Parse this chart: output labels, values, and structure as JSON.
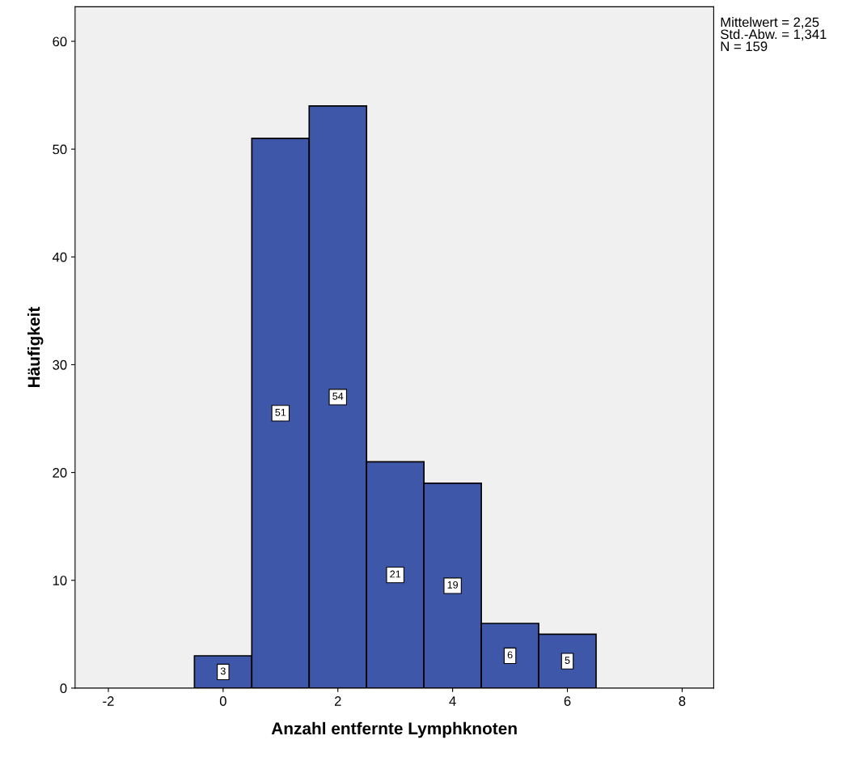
{
  "chart_data": {
    "type": "histogram",
    "xlabel": "Anzahl entfernte Lymphknoten",
    "ylabel": "Häufigkeit",
    "bins": [
      -0.5,
      0.5,
      1.5,
      2.5,
      3.5,
      4.5,
      5.5,
      6.5
    ],
    "values": [
      3,
      51,
      54,
      21,
      19,
      6,
      5
    ],
    "color": "#3f57a8",
    "data_labels": true,
    "xlim": [
      -2.58,
      8.55
    ],
    "xticks": [
      {
        "value": -2,
        "label": "-2"
      },
      0,
      2,
      4,
      6,
      8
    ],
    "ylim": [
      0,
      63.2
    ],
    "yticks": [
      0,
      10,
      20,
      30,
      40,
      50,
      60
    ],
    "grid": false,
    "annotations": [
      "Mittelwert = 2,25\nStd.-Abw. = 1,341\nN = 159"
    ]
  }
}
